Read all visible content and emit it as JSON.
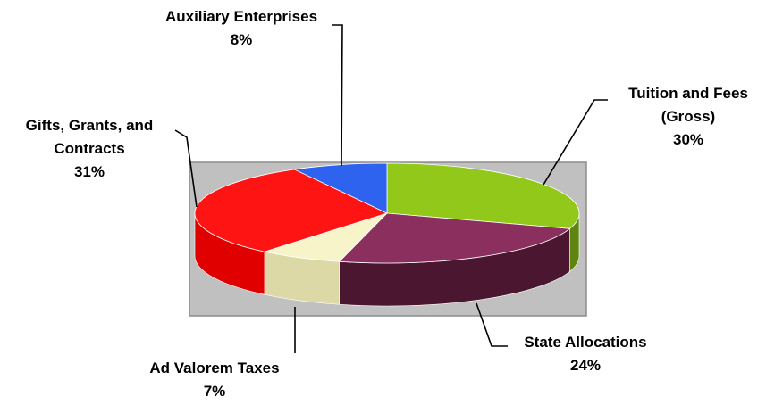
{
  "chart_data": {
    "type": "pie",
    "style": "3d-exploded-none",
    "slices": [
      {
        "label": "Tuition and Fees (Gross)",
        "label_lines": [
          "Tuition and Fees",
          "(Gross)"
        ],
        "percent_text": "30%",
        "value": 30,
        "color": "#92c81a",
        "dark": "#5e8510"
      },
      {
        "label": "State Allocations",
        "label_lines": [
          "State Allocations"
        ],
        "percent_text": "24%",
        "value": 24,
        "color": "#8b2f5e",
        "dark": "#4a1630"
      },
      {
        "label": "Ad Valorem Taxes",
        "label_lines": [
          "Ad Valorem Taxes"
        ],
        "percent_text": "7%",
        "value": 7,
        "color": "#f6f4c8",
        "dark": "#dcd9a6"
      },
      {
        "label": "Gifts, Grants, and Contracts",
        "label_lines": [
          "Gifts, Grants, and",
          "Contracts"
        ],
        "percent_text": "31%",
        "value": 31,
        "color": "#ff1414",
        "dark": "#e00000"
      },
      {
        "label": "Auxiliary Enterprises",
        "label_lines": [
          "Auxiliary Enterprises"
        ],
        "percent_text": "8%",
        "value": 8,
        "color": "#2e63f0",
        "dark": "#1f43a8"
      }
    ],
    "legend": "none",
    "plot_area_fill": "#c0c0c0"
  }
}
